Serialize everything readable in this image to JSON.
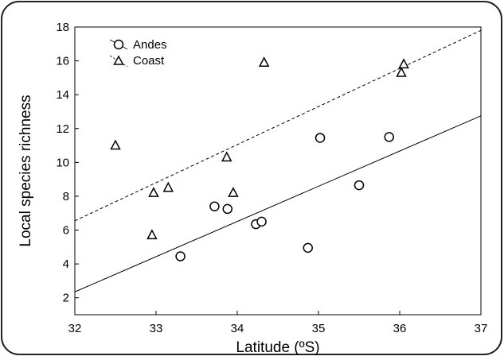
{
  "chart_data": {
    "type": "scatter",
    "title": "",
    "xlabel": "Latitude (ºS)",
    "ylabel": "Local species richness",
    "xlim": [
      32,
      37
    ],
    "ylim": [
      1,
      18
    ],
    "x_ticks": [
      "32",
      "33",
      "34",
      "35",
      "36",
      "37"
    ],
    "y_ticks": [
      "2",
      "4",
      "6",
      "8",
      "10",
      "12",
      "14",
      "16",
      "18"
    ],
    "grid": false,
    "legend_placement": "top-left",
    "series": [
      {
        "name": "Andes",
        "marker": "circle",
        "points": [
          [
            33.3,
            4.45
          ],
          [
            33.72,
            7.4
          ],
          [
            33.88,
            7.25
          ],
          [
            34.23,
            6.35
          ],
          [
            34.3,
            6.5
          ],
          [
            34.87,
            4.95
          ],
          [
            35.02,
            11.45
          ],
          [
            35.5,
            8.65
          ],
          [
            35.87,
            11.5
          ]
        ],
        "fit_line": {
          "style": "solid",
          "points": [
            [
              32,
              2.35
            ],
            [
              37,
              12.75
            ]
          ]
        }
      },
      {
        "name": "Coast",
        "marker": "triangle",
        "points": [
          [
            32.5,
            11.0
          ],
          [
            32.95,
            5.7
          ],
          [
            32.97,
            8.2
          ],
          [
            33.15,
            8.5
          ],
          [
            33.87,
            10.3
          ],
          [
            33.95,
            8.2
          ],
          [
            34.33,
            15.9
          ],
          [
            36.02,
            15.3
          ],
          [
            36.05,
            15.8
          ]
        ],
        "fit_line": {
          "style": "dashed",
          "points": [
            [
              32,
              6.55
            ],
            [
              37,
              17.8
            ]
          ]
        }
      }
    ]
  },
  "colors": {
    "ink": "#000000",
    "background": "#ffffff",
    "frame_border": "#222222"
  }
}
